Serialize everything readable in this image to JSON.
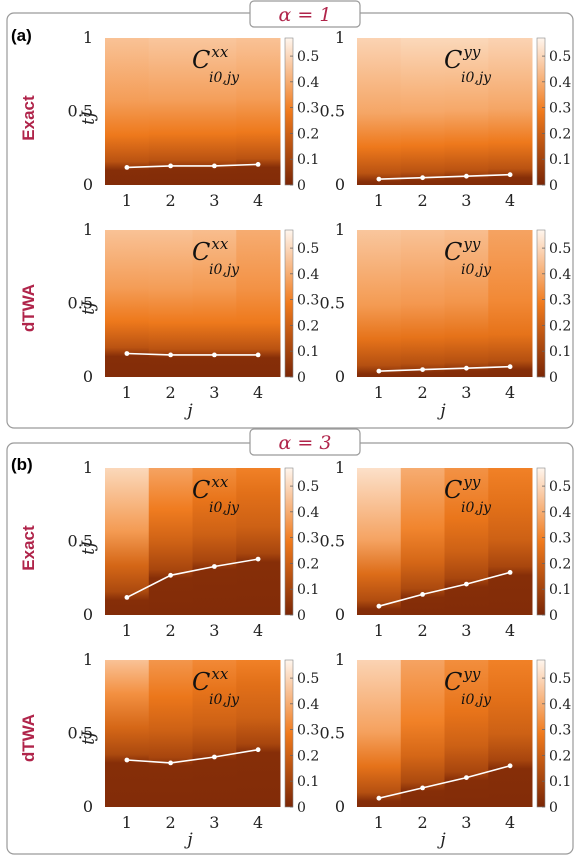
{
  "figure": {
    "sections": [
      {
        "label": "(a)",
        "alpha": "α = 1"
      },
      {
        "label": "(b)",
        "alpha": "α = 3"
      }
    ],
    "row_labels": [
      "Exact",
      "dTWA",
      "Exact",
      "dTWA"
    ],
    "ylabel": "tJ",
    "xlabel": "j",
    "xticks": [
      "1",
      "2",
      "3",
      "4"
    ],
    "yticks": [
      "0",
      "0.5",
      "1"
    ],
    "colorbar_ticks": [
      "0",
      "0.1",
      "0.2",
      "0.3",
      "0.4",
      "0.5"
    ],
    "colormap": {
      "low": "#7a2606",
      "mid": "#f07a1c",
      "high": "#fff6ee"
    },
    "correlator_labels": [
      "xx",
      "yy"
    ],
    "correlator_subscript": "i0,jy"
  },
  "chart_data": [
    {
      "type": "heatmap",
      "section": "(a)",
      "row": "Exact",
      "correlator": "xx",
      "x": [
        1,
        2,
        3,
        4
      ],
      "ylim": [
        0,
        1
      ],
      "zlim": [
        0,
        0.57
      ],
      "boundary_tJ": [
        0.12,
        0.13,
        0.13,
        0.14
      ],
      "columns": [
        {
          "low": 0.02,
          "mid": 0.28,
          "high": 0.45
        },
        {
          "low": 0.02,
          "mid": 0.28,
          "high": 0.46
        },
        {
          "low": 0.02,
          "mid": 0.28,
          "high": 0.46
        },
        {
          "low": 0.02,
          "mid": 0.28,
          "high": 0.45
        }
      ]
    },
    {
      "type": "heatmap",
      "section": "(a)",
      "row": "Exact",
      "correlator": "yy",
      "x": [
        1,
        2,
        3,
        4
      ],
      "ylim": [
        0,
        1
      ],
      "zlim": [
        0,
        0.57
      ],
      "boundary_tJ": [
        0.04,
        0.05,
        0.06,
        0.07
      ],
      "columns": [
        {
          "low": 0.02,
          "mid": 0.28,
          "high": 0.49
        },
        {
          "low": 0.02,
          "mid": 0.28,
          "high": 0.5
        },
        {
          "low": 0.02,
          "mid": 0.28,
          "high": 0.5
        },
        {
          "low": 0.02,
          "mid": 0.28,
          "high": 0.49
        }
      ]
    },
    {
      "type": "heatmap",
      "section": "(a)",
      "row": "dTWA",
      "correlator": "xx",
      "x": [
        1,
        2,
        3,
        4
      ],
      "ylim": [
        0,
        1
      ],
      "zlim": [
        0,
        0.57
      ],
      "boundary_tJ": [
        0.16,
        0.15,
        0.15,
        0.15
      ],
      "columns": [
        {
          "low": 0.02,
          "mid": 0.28,
          "high": 0.45
        },
        {
          "low": 0.02,
          "mid": 0.28,
          "high": 0.45
        },
        {
          "low": 0.02,
          "mid": 0.28,
          "high": 0.44
        },
        {
          "low": 0.02,
          "mid": 0.28,
          "high": 0.4
        }
      ]
    },
    {
      "type": "heatmap",
      "section": "(a)",
      "row": "dTWA",
      "correlator": "yy",
      "x": [
        1,
        2,
        3,
        4
      ],
      "ylim": [
        0,
        1
      ],
      "zlim": [
        0,
        0.57
      ],
      "boundary_tJ": [
        0.04,
        0.05,
        0.06,
        0.07
      ],
      "columns": [
        {
          "low": 0.02,
          "mid": 0.26,
          "high": 0.46
        },
        {
          "low": 0.02,
          "mid": 0.26,
          "high": 0.45
        },
        {
          "low": 0.02,
          "mid": 0.26,
          "high": 0.44
        },
        {
          "low": 0.02,
          "mid": 0.26,
          "high": 0.38
        }
      ]
    },
    {
      "type": "heatmap",
      "section": "(b)",
      "row": "Exact",
      "correlator": "xx",
      "x": [
        1,
        2,
        3,
        4
      ],
      "ylim": [
        0,
        1
      ],
      "zlim": [
        0,
        0.57
      ],
      "boundary_tJ": [
        0.12,
        0.27,
        0.33,
        0.38
      ],
      "columns": [
        {
          "low": 0.02,
          "mid": 0.22,
          "high": 0.5
        },
        {
          "low": 0.02,
          "mid": 0.2,
          "high": 0.38
        },
        {
          "low": 0.02,
          "mid": 0.2,
          "high": 0.33
        },
        {
          "low": 0.02,
          "mid": 0.2,
          "high": 0.3
        }
      ]
    },
    {
      "type": "heatmap",
      "section": "(b)",
      "row": "Exact",
      "correlator": "yy",
      "x": [
        1,
        2,
        3,
        4
      ],
      "ylim": [
        0,
        1
      ],
      "zlim": [
        0,
        0.57
      ],
      "boundary_tJ": [
        0.06,
        0.14,
        0.21,
        0.29
      ],
      "columns": [
        {
          "low": 0.02,
          "mid": 0.24,
          "high": 0.52
        },
        {
          "low": 0.02,
          "mid": 0.22,
          "high": 0.4
        },
        {
          "low": 0.02,
          "mid": 0.2,
          "high": 0.34
        },
        {
          "low": 0.02,
          "mid": 0.2,
          "high": 0.3
        }
      ]
    },
    {
      "type": "heatmap",
      "section": "(b)",
      "row": "dTWA",
      "correlator": "xx",
      "x": [
        1,
        2,
        3,
        4
      ],
      "ylim": [
        0,
        1
      ],
      "zlim": [
        0,
        0.57
      ],
      "boundary_tJ": [
        0.32,
        0.3,
        0.34,
        0.39
      ],
      "columns": [
        {
          "low": 0.02,
          "mid": 0.22,
          "high": 0.45
        },
        {
          "low": 0.02,
          "mid": 0.2,
          "high": 0.35
        },
        {
          "low": 0.02,
          "mid": 0.2,
          "high": 0.32
        },
        {
          "low": 0.02,
          "mid": 0.2,
          "high": 0.3
        }
      ]
    },
    {
      "type": "heatmap",
      "section": "(b)",
      "row": "dTWA",
      "correlator": "yy",
      "x": [
        1,
        2,
        3,
        4
      ],
      "ylim": [
        0,
        1
      ],
      "zlim": [
        0,
        0.57
      ],
      "boundary_tJ": [
        0.06,
        0.13,
        0.2,
        0.28
      ],
      "columns": [
        {
          "low": 0.02,
          "mid": 0.26,
          "high": 0.49
        },
        {
          "low": 0.02,
          "mid": 0.22,
          "high": 0.38
        },
        {
          "low": 0.02,
          "mid": 0.2,
          "high": 0.33
        },
        {
          "low": 0.02,
          "mid": 0.2,
          "high": 0.3
        }
      ]
    }
  ]
}
